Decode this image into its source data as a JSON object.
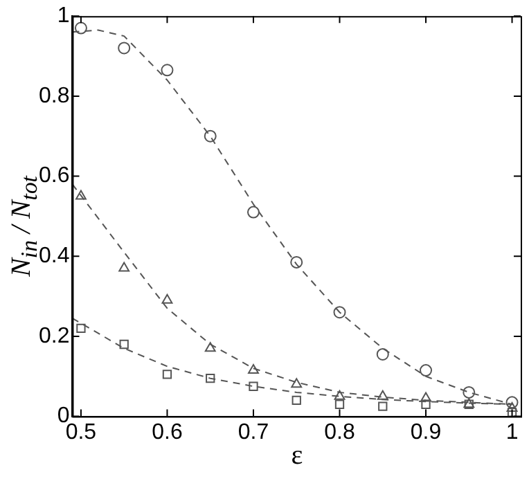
{
  "chart_data": {
    "type": "scatter",
    "xlabel": "ε",
    "ylabel": "N$_{in}$ / N$_{tot}$",
    "xlim": [
      0.49,
      1.01
    ],
    "ylim": [
      0,
      1
    ],
    "xticks": [
      0.5,
      0.6,
      0.7,
      0.8,
      0.9,
      1
    ],
    "yticks": [
      0,
      0.2,
      0.4,
      0.6,
      0.8,
      1
    ],
    "grid": false,
    "legend": false,
    "series": [
      {
        "marker": "circle",
        "color": "#555555",
        "x": [
          0.5,
          0.55,
          0.6,
          0.65,
          0.7,
          0.75,
          0.8,
          0.85,
          0.9,
          0.95,
          1.0
        ],
        "values": [
          0.97,
          0.92,
          0.865,
          0.7,
          0.51,
          0.385,
          0.26,
          0.155,
          0.115,
          0.06,
          0.035
        ]
      },
      {
        "marker": "triangle",
        "color": "#555555",
        "x": [
          0.5,
          0.55,
          0.6,
          0.65,
          0.7,
          0.75,
          0.8,
          0.85,
          0.9,
          0.95,
          1.0
        ],
        "values": [
          0.55,
          0.37,
          0.29,
          0.17,
          0.115,
          0.08,
          0.05,
          0.05,
          0.045,
          0.03,
          0.02
        ]
      },
      {
        "marker": "square",
        "color": "#555555",
        "x": [
          0.5,
          0.55,
          0.6,
          0.65,
          0.7,
          0.75,
          0.8,
          0.85,
          0.9,
          0.95,
          1.0
        ],
        "values": [
          0.22,
          0.18,
          0.105,
          0.095,
          0.075,
          0.04,
          0.03,
          0.025,
          0.03,
          0.03,
          0.01
        ]
      },
      {
        "type": "line",
        "line_style": "dashed",
        "marker": "none",
        "color": "#555555",
        "x": [
          0.49,
          0.52,
          0.55,
          0.6,
          0.65,
          0.7,
          0.75,
          0.8,
          0.85,
          0.9,
          0.95,
          1.0
        ],
        "values": [
          0.96,
          0.965,
          0.95,
          0.84,
          0.7,
          0.53,
          0.38,
          0.26,
          0.17,
          0.1,
          0.06,
          0.03
        ]
      },
      {
        "type": "line",
        "line_style": "dashed",
        "marker": "none",
        "color": "#555555",
        "x": [
          0.49,
          0.55,
          0.6,
          0.65,
          0.7,
          0.75,
          0.8,
          0.85,
          0.9,
          0.95,
          1.0
        ],
        "values": [
          0.58,
          0.41,
          0.27,
          0.18,
          0.12,
          0.085,
          0.06,
          0.048,
          0.04,
          0.035,
          0.03
        ]
      },
      {
        "type": "line",
        "line_style": "dashed",
        "marker": "none",
        "color": "#555555",
        "x": [
          0.49,
          0.55,
          0.6,
          0.65,
          0.7,
          0.75,
          0.8,
          0.85,
          0.9,
          0.95,
          1.0
        ],
        "values": [
          0.245,
          0.17,
          0.125,
          0.095,
          0.075,
          0.06,
          0.05,
          0.042,
          0.037,
          0.033,
          0.03
        ]
      }
    ]
  }
}
